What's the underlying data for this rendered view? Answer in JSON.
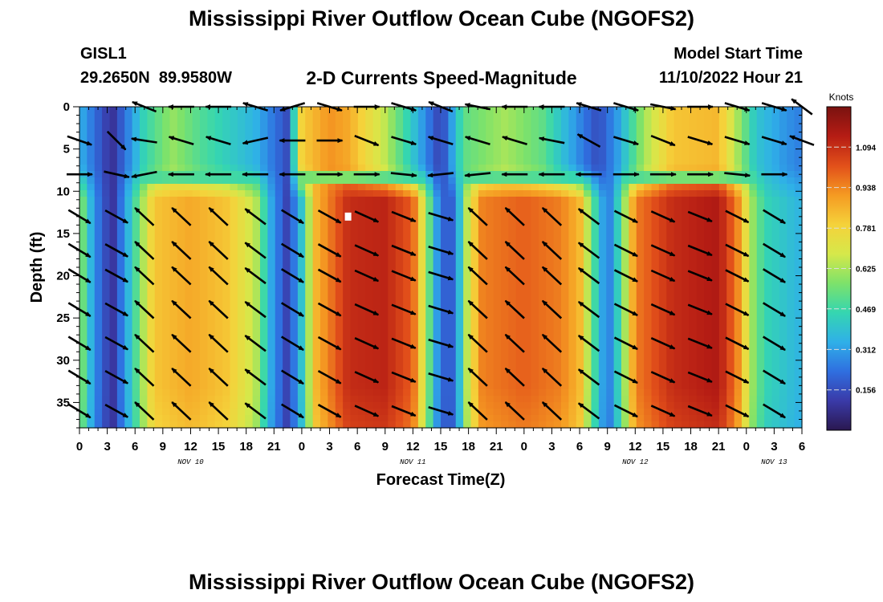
{
  "chart_data": {
    "type": "heatmap",
    "title": "Mississippi River Outflow Ocean Cube (NGOFS2)",
    "station": "GISL1",
    "location": "29.2650N  89.9580W",
    "subtitle": "2-D Currents Speed-Magnitude",
    "model_start_label": "Model Start Time",
    "model_start_value": "11/10/2022 Hour 21",
    "xlabel": "Forecast Time(Z)",
    "ylabel": "Depth (ft)",
    "colorbar_label": "Knots",
    "x_range_hours": [
      0,
      78
    ],
    "x_ticks": [
      {
        "h": 0,
        "label": "0"
      },
      {
        "h": 3,
        "label": "3"
      },
      {
        "h": 6,
        "label": "6"
      },
      {
        "h": 9,
        "label": "9"
      },
      {
        "h": 12,
        "label": "12"
      },
      {
        "h": 15,
        "label": "15"
      },
      {
        "h": 18,
        "label": "18"
      },
      {
        "h": 21,
        "label": "21"
      },
      {
        "h": 24,
        "label": "0"
      },
      {
        "h": 27,
        "label": "3"
      },
      {
        "h": 30,
        "label": "6"
      },
      {
        "h": 33,
        "label": "9"
      },
      {
        "h": 36,
        "label": "12"
      },
      {
        "h": 39,
        "label": "15"
      },
      {
        "h": 42,
        "label": "18"
      },
      {
        "h": 45,
        "label": "21"
      },
      {
        "h": 48,
        "label": "0"
      },
      {
        "h": 51,
        "label": "3"
      },
      {
        "h": 54,
        "label": "6"
      },
      {
        "h": 57,
        "label": "9"
      },
      {
        "h": 60,
        "label": "12"
      },
      {
        "h": 63,
        "label": "15"
      },
      {
        "h": 66,
        "label": "18"
      },
      {
        "h": 69,
        "label": "21"
      },
      {
        "h": 72,
        "label": "0"
      },
      {
        "h": 75,
        "label": "3"
      },
      {
        "h": 78,
        "label": "6"
      }
    ],
    "date_labels": [
      {
        "h": 12,
        "label": "NOV 10"
      },
      {
        "h": 36,
        "label": "NOV 11"
      },
      {
        "h": 60,
        "label": "NOV 12"
      },
      {
        "h": 75,
        "label": "NOV 13"
      }
    ],
    "y_range_ft": [
      0,
      38
    ],
    "y_ticks": [
      0,
      5,
      10,
      15,
      20,
      25,
      30,
      35
    ],
    "colorbar_range": [
      0.0,
      1.25
    ],
    "colorbar_ticks": [
      "0.156",
      "0.312",
      "0.469",
      "0.625",
      "0.781",
      "0.938",
      "1.094"
    ],
    "colorbar_tick_values": [
      0.156,
      0.312,
      0.469,
      0.625,
      0.781,
      0.938,
      1.094
    ],
    "colorbar_colors": [
      "#2a1850",
      "#3a3aa8",
      "#2f6fe0",
      "#2fb0e8",
      "#35d6b0",
      "#7ee26a",
      "#d6e84a",
      "#f5d23a",
      "#f59a22",
      "#e2501a",
      "#b51c14",
      "#7a1210"
    ],
    "layers": {
      "surface_ft": [
        0,
        8
      ],
      "deep_ft": [
        10,
        38
      ]
    },
    "speed_anchors": {
      "deep_hours": [
        0,
        1.5,
        3.5,
        5.5,
        7,
        8,
        12,
        16,
        19,
        20.5,
        22.5,
        24,
        25.5,
        29,
        33,
        36,
        37.5,
        39,
        40.5,
        42,
        43.5,
        48,
        52,
        54,
        55.5,
        57,
        58.5,
        60,
        64,
        69,
        71,
        72.5,
        74,
        78
      ],
      "deep_speed": [
        0.62,
        0.3,
        0.08,
        0.4,
        0.65,
        0.82,
        0.88,
        0.82,
        0.65,
        0.35,
        0.12,
        0.4,
        0.85,
        1.1,
        1.12,
        1.0,
        0.6,
        0.2,
        0.2,
        0.7,
        0.95,
        1.0,
        0.95,
        0.85,
        0.5,
        0.22,
        0.5,
        0.95,
        1.1,
        1.15,
        0.95,
        0.62,
        0.45,
        0.35
      ],
      "surface_hours": [
        0,
        3.5,
        7,
        10,
        13,
        19,
        22.5,
        24,
        27,
        29,
        33,
        36,
        39,
        41.5,
        46,
        50,
        53.5,
        56,
        58,
        61,
        64,
        69,
        73,
        76,
        78
      ],
      "surface_speed": [
        0.35,
        0.08,
        0.45,
        0.6,
        0.5,
        0.35,
        0.15,
        0.8,
        0.92,
        0.88,
        0.65,
        0.4,
        0.12,
        0.52,
        0.62,
        0.52,
        0.3,
        0.15,
        0.3,
        0.62,
        0.82,
        0.85,
        0.4,
        0.3,
        0.25
      ]
    },
    "current_vectors_surface": [
      {
        "h": 0,
        "d": 4,
        "dx": 1.0,
        "dy": -0.35
      },
      {
        "h": 0,
        "d": 8,
        "dx": 1.0,
        "dy": 0.0
      },
      {
        "h": 4,
        "d": 4,
        "dx": 0.7,
        "dy": -0.7
      },
      {
        "h": 4,
        "d": 8,
        "dx": 0.9,
        "dy": -0.2
      },
      {
        "h": 7,
        "d": 0,
        "dx": -1.0,
        "dy": 0.4
      },
      {
        "h": 7,
        "d": 4,
        "dx": -1.0,
        "dy": 0.15
      },
      {
        "h": 7,
        "d": 8,
        "dx": -1.0,
        "dy": -0.2
      },
      {
        "h": 11,
        "d": 0,
        "dx": -1.0,
        "dy": 0.0
      },
      {
        "h": 11,
        "d": 4,
        "dx": -1.0,
        "dy": 0.3
      },
      {
        "h": 11,
        "d": 8,
        "dx": -1.0,
        "dy": 0.0
      },
      {
        "h": 15,
        "d": 0,
        "dx": -1.0,
        "dy": 0.0
      },
      {
        "h": 15,
        "d": 4,
        "dx": -1.0,
        "dy": 0.3
      },
      {
        "h": 15,
        "d": 8,
        "dx": -1.0,
        "dy": 0.0
      },
      {
        "h": 19,
        "d": 0,
        "dx": -1.0,
        "dy": 0.3
      },
      {
        "h": 19,
        "d": 4,
        "dx": -0.9,
        "dy": -0.2
      },
      {
        "h": 19,
        "d": 8,
        "dx": -1.0,
        "dy": 0.0
      },
      {
        "h": 23,
        "d": 0,
        "dx": -1.0,
        "dy": -0.3
      },
      {
        "h": 23,
        "d": 4,
        "dx": -1.0,
        "dy": 0.0
      },
      {
        "h": 23,
        "d": 8,
        "dx": -1.0,
        "dy": 0.0
      },
      {
        "h": 27,
        "d": 0,
        "dx": 1.0,
        "dy": -0.3
      },
      {
        "h": 27,
        "d": 4,
        "dx": 1.0,
        "dy": 0.0
      },
      {
        "h": 27,
        "d": 8,
        "dx": 1.0,
        "dy": 0.0
      },
      {
        "h": 31,
        "d": 0,
        "dx": 1.0,
        "dy": 0.0
      },
      {
        "h": 31,
        "d": 4,
        "dx": 1.0,
        "dy": -0.4
      },
      {
        "h": 31,
        "d": 8,
        "dx": 1.0,
        "dy": 0.0
      },
      {
        "h": 35,
        "d": 0,
        "dx": 1.0,
        "dy": -0.3
      },
      {
        "h": 35,
        "d": 4,
        "dx": 1.0,
        "dy": -0.3
      },
      {
        "h": 35,
        "d": 8,
        "dx": 1.0,
        "dy": -0.1
      },
      {
        "h": 39,
        "d": 0,
        "dx": -1.0,
        "dy": 0.4
      },
      {
        "h": 39,
        "d": 4,
        "dx": -1.0,
        "dy": 0.3
      },
      {
        "h": 39,
        "d": 8,
        "dx": -1.0,
        "dy": -0.1
      },
      {
        "h": 43,
        "d": 0,
        "dx": -1.0,
        "dy": 0.2
      },
      {
        "h": 43,
        "d": 4,
        "dx": -1.0,
        "dy": 0.3
      },
      {
        "h": 43,
        "d": 8,
        "dx": -1.0,
        "dy": -0.1
      },
      {
        "h": 47,
        "d": 0,
        "dx": -1.0,
        "dy": 0.0
      },
      {
        "h": 47,
        "d": 4,
        "dx": -1.0,
        "dy": 0.3
      },
      {
        "h": 47,
        "d": 8,
        "dx": -1.0,
        "dy": 0.0
      },
      {
        "h": 51,
        "d": 0,
        "dx": -1.0,
        "dy": 0.0
      },
      {
        "h": 51,
        "d": 4,
        "dx": -1.0,
        "dy": 0.2
      },
      {
        "h": 51,
        "d": 8,
        "dx": -1.0,
        "dy": 0.0
      },
      {
        "h": 55,
        "d": 0,
        "dx": -1.0,
        "dy": 0.3
      },
      {
        "h": 55,
        "d": 4,
        "dx": -0.9,
        "dy": 0.5
      },
      {
        "h": 55,
        "d": 8,
        "dx": -1.0,
        "dy": 0.0
      },
      {
        "h": 59,
        "d": 0,
        "dx": 1.0,
        "dy": -0.3
      },
      {
        "h": 59,
        "d": 4,
        "dx": 1.0,
        "dy": -0.3
      },
      {
        "h": 59,
        "d": 8,
        "dx": 1.0,
        "dy": 0.0
      },
      {
        "h": 63,
        "d": 0,
        "dx": 1.0,
        "dy": -0.2
      },
      {
        "h": 63,
        "d": 4,
        "dx": 1.0,
        "dy": -0.4
      },
      {
        "h": 63,
        "d": 8,
        "dx": 1.0,
        "dy": 0.0
      },
      {
        "h": 67,
        "d": 0,
        "dx": 1.0,
        "dy": 0.0
      },
      {
        "h": 67,
        "d": 4,
        "dx": 1.0,
        "dy": -0.3
      },
      {
        "h": 67,
        "d": 8,
        "dx": 1.0,
        "dy": 0.0
      },
      {
        "h": 71,
        "d": 0,
        "dx": 1.0,
        "dy": -0.3
      },
      {
        "h": 71,
        "d": 4,
        "dx": 1.0,
        "dy": -0.3
      },
      {
        "h": 71,
        "d": 8,
        "dx": 1.0,
        "dy": -0.1
      },
      {
        "h": 75,
        "d": 0,
        "dx": 1.0,
        "dy": -0.3
      },
      {
        "h": 75,
        "d": 4,
        "dx": 1.0,
        "dy": -0.3
      },
      {
        "h": 75,
        "d": 8,
        "dx": 1.0,
        "dy": 0.0
      },
      {
        "h": 78,
        "d": 0,
        "dx": -0.8,
        "dy": 0.6
      },
      {
        "h": 78,
        "d": 4,
        "dx": -0.8,
        "dy": 0.3
      }
    ],
    "deep_vector_rows_ft": [
      13,
      17,
      20,
      24,
      28,
      32,
      36
    ],
    "current_vectors_deep_columns": [
      {
        "h": 0,
        "dx": 1.0,
        "dy": 0.6
      },
      {
        "h": 4,
        "dx": 1.0,
        "dy": 0.55
      },
      {
        "h": 7,
        "dx": -0.75,
        "dy": -0.7
      },
      {
        "h": 11,
        "dx": -0.75,
        "dy": -0.7
      },
      {
        "h": 15,
        "dx": -0.75,
        "dy": -0.7
      },
      {
        "h": 19,
        "dx": -0.8,
        "dy": -0.6
      },
      {
        "h": 23,
        "dx": 1.0,
        "dy": 0.6
      },
      {
        "h": 27,
        "dx": 1.0,
        "dy": 0.55
      },
      {
        "h": 31,
        "dx": 1.0,
        "dy": 0.45
      },
      {
        "h": 35,
        "dx": 1.0,
        "dy": 0.4
      },
      {
        "h": 39,
        "dx": 1.0,
        "dy": 0.3
      },
      {
        "h": 43,
        "dx": -0.75,
        "dy": -0.7
      },
      {
        "h": 47,
        "dx": -0.75,
        "dy": -0.7
      },
      {
        "h": 51,
        "dx": -0.75,
        "dy": -0.7
      },
      {
        "h": 55,
        "dx": -0.8,
        "dy": -0.6
      },
      {
        "h": 59,
        "dx": 1.0,
        "dy": 0.5
      },
      {
        "h": 63,
        "dx": 1.0,
        "dy": 0.45
      },
      {
        "h": 67,
        "dx": 1.0,
        "dy": 0.4
      },
      {
        "h": 71,
        "dx": 1.0,
        "dy": 0.5
      },
      {
        "h": 75,
        "dx": 1.0,
        "dy": 0.6
      }
    ],
    "marker": {
      "h": 29,
      "d": 13
    }
  },
  "footer_title": "Mississippi River Outflow Ocean Cube (NGOFS2)"
}
